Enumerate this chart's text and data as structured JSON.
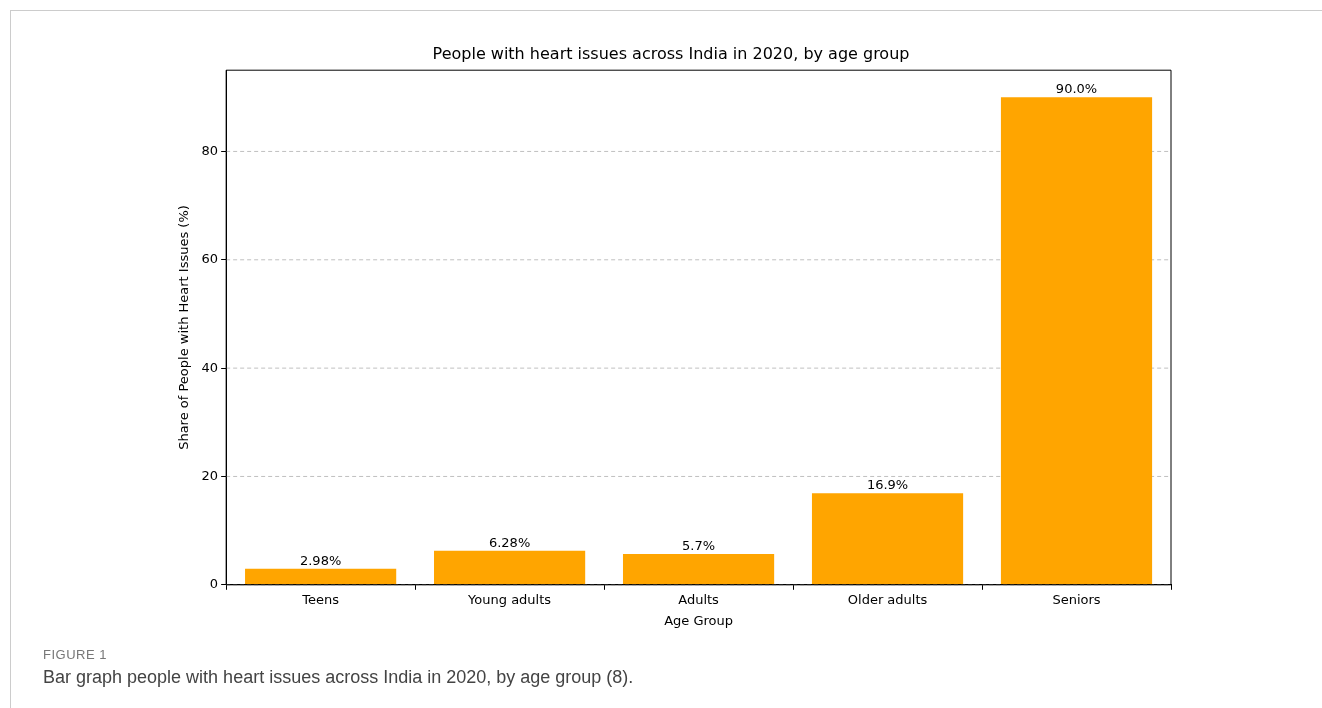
{
  "chart_data": {
    "type": "bar",
    "title": "People with heart issues across India in 2020, by age group",
    "xlabel": "Age Group",
    "ylabel": "Share of People with Heart Issues (%)",
    "categories": [
      "Teens",
      "Young adults",
      "Adults",
      "Older adults",
      "Seniors"
    ],
    "values": [
      2.98,
      6.28,
      5.7,
      16.9,
      90.0
    ],
    "value_labels": [
      "2.98%",
      "6.28%",
      "5.7%",
      "16.9%",
      "90.0%"
    ],
    "color": "#ffa500",
    "ylim": [
      0,
      95
    ],
    "yticks": [
      0,
      20,
      40,
      60,
      80
    ],
    "grid": "y",
    "legend": false,
    "annotations": [
      "FIGURE 1",
      "Bar graph people with heart issues across India in 2020, by age group (8)."
    ]
  }
}
